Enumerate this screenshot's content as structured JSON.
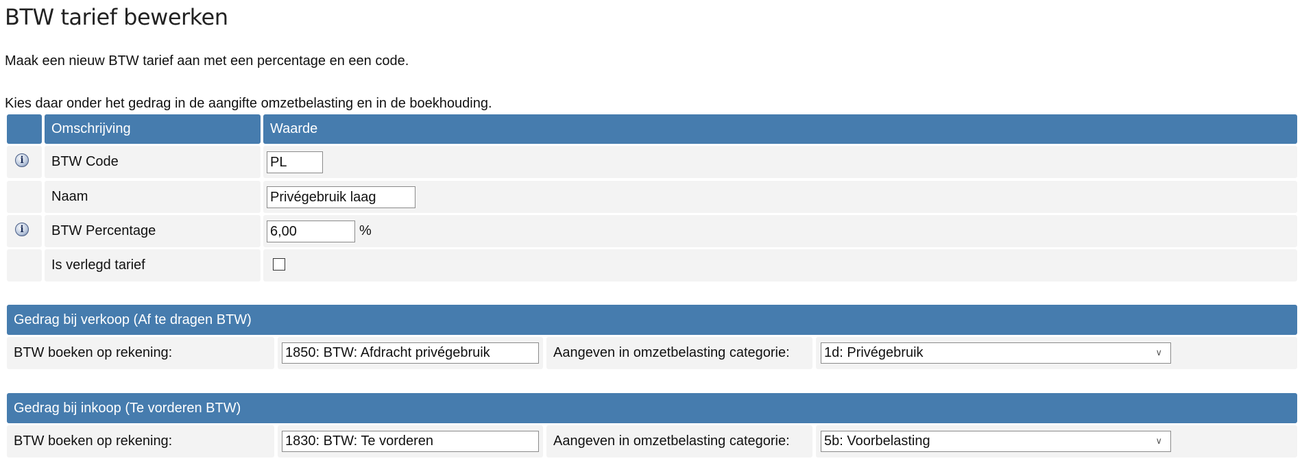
{
  "page_title": "BTW tarief bewerken",
  "intro": [
    "Maak een nieuw BTW tarief aan met een percentage en een code.",
    "Kies daar onder het gedrag in de aangifte omzetbelasting en in de boekhouding."
  ],
  "table": {
    "headers": {
      "description": "Omschrijving",
      "value": "Waarde"
    },
    "rows": [
      {
        "label": "BTW Code",
        "value": "PL",
        "icon": "info-icon"
      },
      {
        "label": "Naam",
        "value": "Privégebruik laag"
      },
      {
        "label": "BTW Percentage",
        "value": "6,00",
        "unit": "%",
        "icon": "info-icon"
      },
      {
        "label": "Is verlegd tarief",
        "checked": false
      }
    ]
  },
  "sales": {
    "title": "Gedrag bij verkoop (Af te dragen BTW)",
    "account_label": "BTW boeken op rekening:",
    "account_value": "1850: BTW: Afdracht privégebruik",
    "category_label": "Aangeven in omzetbelasting categorie:",
    "category_value": "1d: Privégebruik"
  },
  "purchase": {
    "title": "Gedrag bij inkoop (Te vorderen BTW)",
    "account_label": "BTW boeken op rekening:",
    "account_value": "1830: BTW: Te vorderen",
    "category_label": "Aangeven in omzetbelasting categorie:",
    "category_value": "5b: Voorbelasting"
  },
  "colors": {
    "header": "#467cae",
    "row": "#f3f3f3"
  }
}
